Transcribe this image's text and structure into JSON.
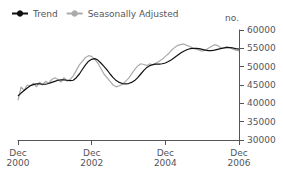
{
  "chart_data": {
    "type": "line",
    "ylabel": "no.",
    "categories": [
      "Dec\n2000",
      null,
      null,
      null,
      null,
      null,
      null,
      null,
      null,
      null,
      null,
      null,
      null,
      null,
      null,
      null,
      null,
      null,
      null,
      null,
      null,
      null,
      null,
      null,
      "Dec\n2002",
      null,
      null,
      null,
      null,
      null,
      null,
      null,
      null,
      null,
      null,
      null,
      null,
      null,
      null,
      null,
      null,
      null,
      null,
      null,
      null,
      null,
      null,
      null,
      "Dec\n2004",
      null,
      null,
      null,
      null,
      null,
      null,
      null,
      null,
      null,
      null,
      null,
      null,
      null,
      null,
      null,
      null,
      null,
      null,
      null,
      null,
      null,
      null,
      null,
      "Dec\n2006"
    ],
    "series": [
      {
        "name": "Trend",
        "color": "#111111",
        "values": [
          42000,
          42800,
          43500,
          44200,
          44800,
          45100,
          45300,
          45300,
          45200,
          45200,
          45400,
          45700,
          46000,
          46300,
          46400,
          46400,
          46300,
          46200,
          46300,
          47000,
          48000,
          49300,
          50500,
          51500,
          52000,
          52200,
          51800,
          51000,
          50100,
          49100,
          48000,
          47000,
          46200,
          45700,
          45400,
          45300,
          45400,
          45700,
          46200,
          47000,
          48000,
          49000,
          49800,
          50300,
          50600,
          50700,
          50700,
          50800,
          51000,
          51400,
          51900,
          52500,
          53100,
          53700,
          54200,
          54600,
          54900,
          55000,
          55000,
          54900,
          54700,
          54500,
          54400,
          54400,
          54500,
          54700,
          54900,
          55100,
          55200,
          55200,
          55100,
          54900,
          54800
        ]
      },
      {
        "name": "Seasonally Adjusted",
        "color": "#aaaaaa",
        "values": [
          40800,
          44500,
          43500,
          45000,
          44800,
          45500,
          44500,
          45800,
          45000,
          46000,
          45500,
          46500,
          47000,
          46500,
          45800,
          47000,
          46000,
          46500,
          47500,
          49000,
          50500,
          51500,
          52500,
          53000,
          52800,
          52000,
          51000,
          49500,
          48000,
          47000,
          46000,
          45000,
          44500,
          44800,
          45200,
          46000,
          46800,
          48000,
          49200,
          50200,
          50800,
          50600,
          50300,
          50800,
          50400,
          51000,
          51500,
          52000,
          52800,
          53500,
          54500,
          55200,
          55800,
          56000,
          56200,
          55800,
          55500,
          55000,
          54800,
          54500,
          54200,
          54500,
          55000,
          55500,
          56000,
          55800,
          55200,
          55000,
          55500,
          55200,
          54800,
          54500,
          54300
        ]
      }
    ],
    "ylim": [
      30000,
      60000
    ],
    "yticks": [
      30000,
      35000,
      40000,
      45000,
      50000,
      55000,
      60000
    ],
    "grid": false,
    "legend": "upper left"
  }
}
